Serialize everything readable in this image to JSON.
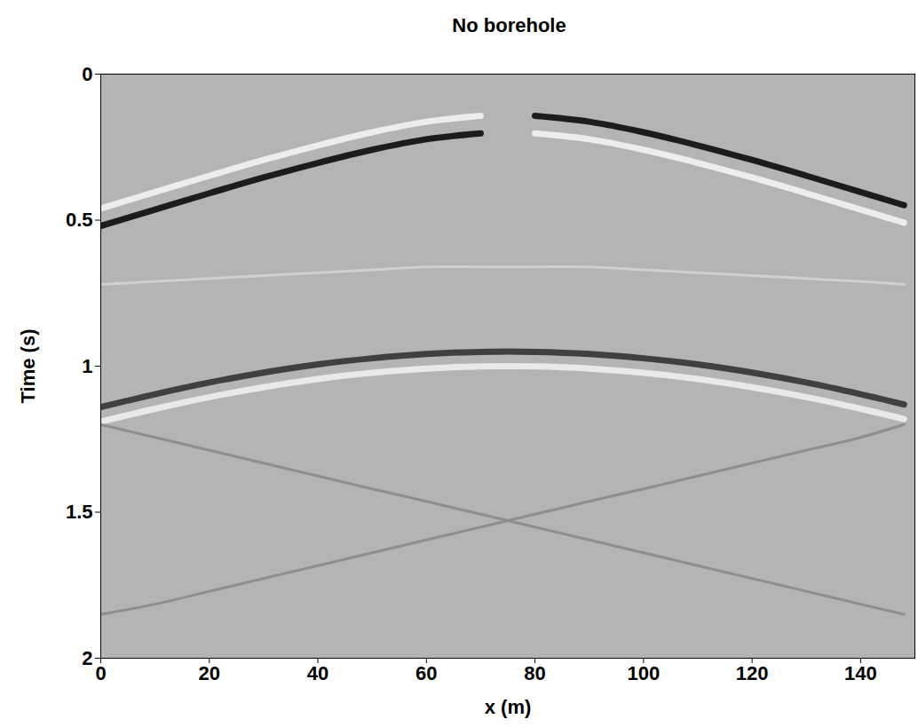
{
  "chart_data": {
    "type": "line",
    "title": "No borehole",
    "x_label": "x (m)",
    "y_label": "Time (s)",
    "x": [
      0,
      10,
      20,
      30,
      40,
      50,
      60,
      70,
      80,
      90,
      100,
      110,
      120,
      130,
      140,
      148
    ],
    "xlim": [
      0,
      150
    ],
    "xticks": [
      0,
      20,
      40,
      60,
      80,
      100,
      120,
      140
    ],
    "ylim": [
      2,
      0
    ],
    "yticks": [
      0,
      0.5,
      1,
      1.5,
      2
    ],
    "series": [
      {
        "color": "#f0f0f0",
        "values": [
          0.46,
          0.404,
          0.348,
          0.294,
          0.244,
          0.199,
          0.163,
          0.143,
          null,
          null,
          null,
          null,
          null,
          null,
          null,
          null
        ]
      },
      {
        "color": "#141414",
        "values": [
          0.52,
          0.464,
          0.408,
          0.354,
          0.304,
          0.259,
          0.223,
          0.203,
          null,
          null,
          null,
          null,
          null,
          null,
          null,
          null
        ]
      },
      {
        "color": "#141414",
        "values": [
          null,
          null,
          null,
          null,
          null,
          null,
          null,
          null,
          0.143,
          0.163,
          0.199,
          0.244,
          0.294,
          0.348,
          0.404,
          0.449
        ]
      },
      {
        "color": "#f0f0f0",
        "values": [
          null,
          null,
          null,
          null,
          null,
          null,
          null,
          null,
          0.203,
          0.223,
          0.259,
          0.304,
          0.354,
          0.408,
          0.464,
          0.509
        ]
      },
      {
        "color": "#d2d2d2",
        "values": [
          0.72,
          0.71,
          0.7,
          0.69,
          0.68,
          0.67,
          0.66,
          0.66,
          0.66,
          0.66,
          0.67,
          0.68,
          0.69,
          0.7,
          0.71,
          0.72
        ]
      },
      {
        "color": "#3a3a3a",
        "values": [
          1.14,
          1.096,
          1.056,
          1.022,
          0.994,
          0.973,
          0.958,
          0.951,
          0.951,
          0.958,
          0.973,
          0.994,
          1.022,
          1.056,
          1.096,
          1.131
        ]
      },
      {
        "color": "#ececec",
        "values": [
          1.19,
          1.146,
          1.106,
          1.072,
          1.044,
          1.023,
          1.008,
          1.001,
          1.001,
          1.008,
          1.023,
          1.044,
          1.072,
          1.106,
          1.146,
          1.181
        ]
      },
      {
        "color": "#8c8c8c",
        "values": [
          1.2,
          1.244,
          1.288,
          1.332,
          1.376,
          1.42,
          1.463,
          1.507,
          1.551,
          1.595,
          1.639,
          1.683,
          1.727,
          1.771,
          1.815,
          1.85
        ]
      },
      {
        "color": "#8c8c8c",
        "values": [
          1.85,
          1.815,
          1.771,
          1.727,
          1.683,
          1.639,
          1.595,
          1.551,
          1.507,
          1.463,
          1.42,
          1.376,
          1.332,
          1.288,
          1.244,
          1.2
        ]
      }
    ]
  }
}
